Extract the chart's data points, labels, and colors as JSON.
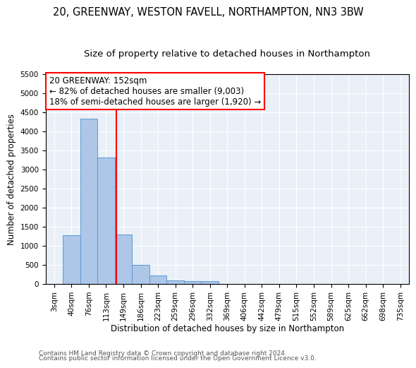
{
  "title1": "20, GREENWAY, WESTON FAVELL, NORTHAMPTON, NN3 3BW",
  "title2": "Size of property relative to detached houses in Northampton",
  "xlabel": "Distribution of detached houses by size in Northampton",
  "ylabel": "Number of detached properties",
  "bar_labels": [
    "3sqm",
    "40sqm",
    "76sqm",
    "113sqm",
    "149sqm",
    "186sqm",
    "223sqm",
    "259sqm",
    "296sqm",
    "332sqm",
    "369sqm",
    "406sqm",
    "442sqm",
    "479sqm",
    "515sqm",
    "552sqm",
    "589sqm",
    "625sqm",
    "662sqm",
    "698sqm",
    "735sqm"
  ],
  "bar_values": [
    0,
    1270,
    4330,
    3300,
    1290,
    490,
    215,
    90,
    65,
    60,
    0,
    0,
    0,
    0,
    0,
    0,
    0,
    0,
    0,
    0,
    0
  ],
  "bar_color": "#aec6e8",
  "bar_edge_color": "#5b9bd5",
  "vline_color": "red",
  "vline_pos": 3.58,
  "annotation_lines": [
    "20 GREENWAY: 152sqm",
    "← 82% of detached houses are smaller (9,003)",
    "18% of semi-detached houses are larger (1,920) →"
  ],
  "ylim": [
    0,
    5500
  ],
  "yticks": [
    0,
    500,
    1000,
    1500,
    2000,
    2500,
    3000,
    3500,
    4000,
    4500,
    5000,
    5500
  ],
  "background_color": "#eaf0f8",
  "grid_color": "#ffffff",
  "footer1": "Contains HM Land Registry data © Crown copyright and database right 2024.",
  "footer2": "Contains public sector information licensed under the Open Government Licence v3.0.",
  "title1_fontsize": 10.5,
  "title2_fontsize": 9.5,
  "axis_label_fontsize": 8.5,
  "tick_fontsize": 7.5,
  "annotation_fontsize": 8.5,
  "footer_fontsize": 6.5
}
